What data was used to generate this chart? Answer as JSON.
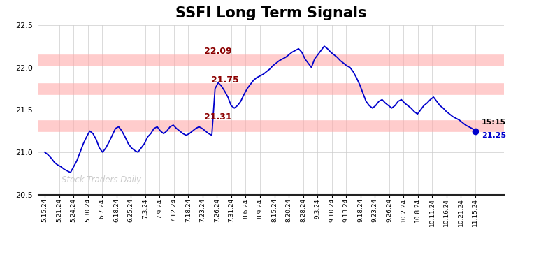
{
  "title": "SSFI Long Term Signals",
  "watermark": "Stock Traders Daily",
  "ylim": [
    20.5,
    22.5
  ],
  "yticks": [
    20.5,
    21.0,
    21.5,
    22.0,
    22.5
  ],
  "hlines": [
    22.09,
    21.75,
    21.31
  ],
  "hline_color": "#ffaaaa",
  "line_color": "#0000cc",
  "background_color": "#ffffff",
  "grid_color": "#cccccc",
  "title_color": "#000000",
  "ann_22_09": {
    "text": "22.09",
    "color": "darkred"
  },
  "ann_21_75": {
    "text": "21.75",
    "color": "darkred"
  },
  "ann_21_31": {
    "text": "21.31",
    "color": "darkred"
  },
  "end_label_time": "15:15",
  "end_label_value": "21.25",
  "xtick_labels": [
    "5.15.24",
    "5.21.24",
    "5.24.24",
    "5.30.24",
    "6.7.24",
    "6.18.24",
    "6.25.24",
    "7.3.24",
    "7.9.24",
    "7.12.24",
    "7.18.24",
    "7.23.24",
    "7.26.24",
    "7.31.24",
    "8.6.24",
    "8.9.24",
    "8.15.24",
    "8.20.24",
    "8.28.24",
    "9.3.24",
    "9.10.24",
    "9.13.24",
    "9.18.24",
    "9.23.24",
    "9.26.24",
    "10.2.24",
    "10.8.24",
    "10.11.24",
    "10.16.24",
    "10.21.24",
    "11.15.24"
  ],
  "y_values": [
    21.0,
    20.97,
    20.93,
    20.88,
    20.85,
    20.83,
    20.8,
    20.78,
    20.76,
    20.83,
    20.9,
    21.0,
    21.1,
    21.18,
    21.25,
    21.22,
    21.15,
    21.05,
    21.0,
    21.05,
    21.12,
    21.2,
    21.28,
    21.3,
    21.25,
    21.18,
    21.1,
    21.05,
    21.02,
    21.0,
    21.05,
    21.1,
    21.18,
    21.22,
    21.28,
    21.3,
    21.25,
    21.22,
    21.25,
    21.3,
    21.32,
    21.28,
    21.25,
    21.22,
    21.2,
    21.22,
    21.25,
    21.28,
    21.3,
    21.28,
    21.25,
    21.22,
    21.2,
    21.75,
    21.82,
    21.78,
    21.72,
    21.65,
    21.55,
    21.52,
    21.55,
    21.6,
    21.68,
    21.75,
    21.8,
    21.85,
    21.88,
    21.9,
    21.92,
    21.95,
    21.98,
    22.02,
    22.05,
    22.08,
    22.1,
    22.12,
    22.15,
    22.18,
    22.2,
    22.22,
    22.18,
    22.1,
    22.05,
    22.0,
    22.1,
    22.15,
    22.2,
    22.25,
    22.22,
    22.18,
    22.15,
    22.12,
    22.08,
    22.05,
    22.02,
    22.0,
    21.95,
    21.88,
    21.8,
    21.7,
    21.6,
    21.55,
    21.52,
    21.55,
    21.6,
    21.62,
    21.58,
    21.55,
    21.52,
    21.55,
    21.6,
    21.62,
    21.58,
    21.55,
    21.52,
    21.48,
    21.45,
    21.5,
    21.55,
    21.58,
    21.62,
    21.65,
    21.6,
    21.55,
    21.52,
    21.48,
    21.45,
    21.42,
    21.4,
    21.38,
    21.35,
    21.32,
    21.3,
    21.28,
    21.25
  ]
}
